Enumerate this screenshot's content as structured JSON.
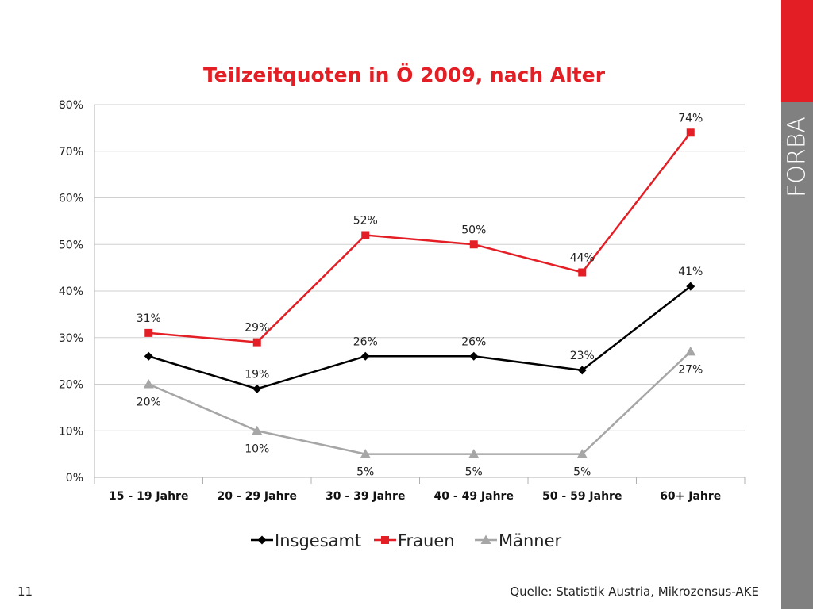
{
  "slide": {
    "number": "11",
    "source": "Quelle: Statistik Austria, Mikrozensus-AKE"
  },
  "logo": {
    "text": "FORBA"
  },
  "colors": {
    "accent": "#e31e24",
    "bar": "#808080",
    "insgesamt": "#000000",
    "frauen": "#e31e24",
    "maenner": "#a6a6a6"
  },
  "chart_data": {
    "type": "line",
    "title": "Teilzeitquoten in Ö 2009, nach Alter",
    "categories": [
      "15 - 19 Jahre",
      "20 - 29 Jahre",
      "30 - 39 Jahre",
      "40 - 49 Jahre",
      "50 - 59 Jahre",
      "60+ Jahre"
    ],
    "ylim": [
      0,
      80
    ],
    "yticks": [
      0,
      10,
      20,
      30,
      40,
      50,
      60,
      70,
      80
    ],
    "ytick_labels": [
      "0%",
      "10%",
      "20%",
      "30%",
      "40%",
      "50%",
      "60%",
      "70%",
      "80%"
    ],
    "grid": true,
    "legend_position": "bottom",
    "series": [
      {
        "name": "Insgesamt",
        "values": [
          26,
          19,
          26,
          26,
          23,
          41
        ],
        "labels": [
          "",
          "19%",
          "26%",
          "26%",
          "23%",
          "41%"
        ],
        "label_pos": [
          "above",
          "above",
          "above",
          "above",
          "above",
          "above"
        ],
        "marker": "diamond",
        "color": "#000000"
      },
      {
        "name": "Frauen",
        "values": [
          31,
          29,
          52,
          50,
          44,
          74
        ],
        "labels": [
          "31%",
          "29%",
          "52%",
          "50%",
          "44%",
          "74%"
        ],
        "label_pos": [
          "above",
          "above",
          "above",
          "above",
          "above",
          "above"
        ],
        "marker": "square",
        "color": "#e31e24"
      },
      {
        "name": "Männer",
        "values": [
          20,
          10,
          5,
          5,
          5,
          27
        ],
        "labels": [
          "20%",
          "10%",
          "5%",
          "5%",
          "5%",
          "27%"
        ],
        "label_pos": [
          "below",
          "below",
          "below",
          "below",
          "below",
          "below"
        ],
        "marker": "triangle",
        "color": "#a6a6a6"
      }
    ]
  }
}
